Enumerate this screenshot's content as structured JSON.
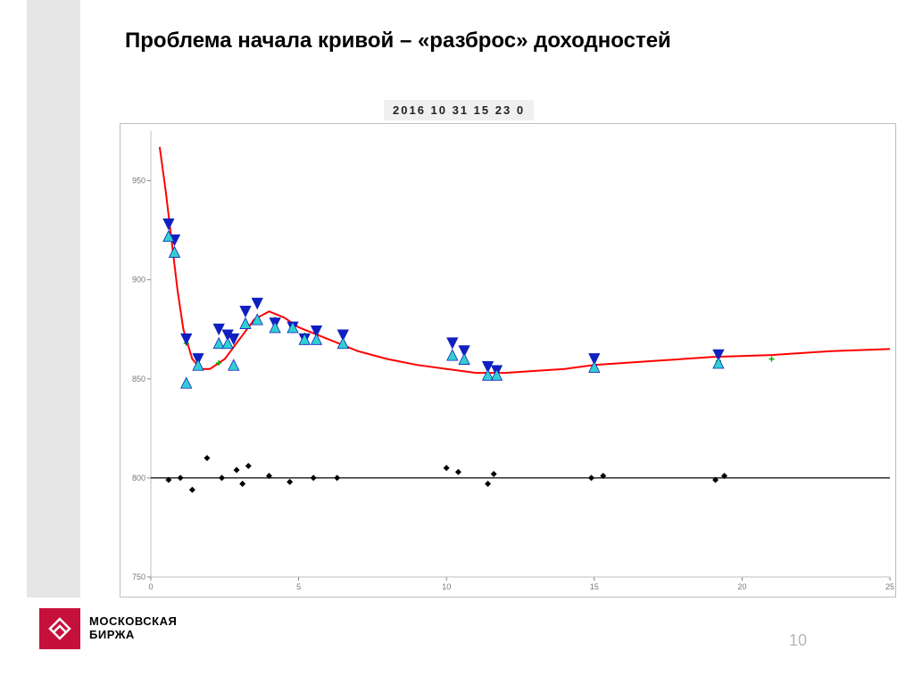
{
  "title": "Проблема начала кривой – «разброс» доходностей",
  "timestamp_label": "2016   10   31   15   23   0",
  "logo": {
    "line1": "МОСКОВСКАЯ",
    "line2": "БИРЖА"
  },
  "page_number": "10",
  "chart": {
    "type": "line+scatter",
    "background_color": "#ffffff",
    "plot_border_color": "#bfbfbf",
    "gridline_color": "#808080",
    "axis_tick_color": "#808080",
    "axis_label_fontsize": 9,
    "axis_label_color": "#777777",
    "xlim": [
      0,
      25
    ],
    "ylim": [
      750,
      975
    ],
    "yticks": [
      750,
      800,
      850,
      900,
      950
    ],
    "xticks": [
      0,
      5,
      10,
      15,
      20,
      25
    ],
    "red_curve": {
      "color": "#ff0000",
      "width": 2,
      "points": [
        [
          0.3,
          967
        ],
        [
          0.5,
          945
        ],
        [
          0.7,
          920
        ],
        [
          0.9,
          895
        ],
        [
          1.1,
          875
        ],
        [
          1.4,
          860
        ],
        [
          1.7,
          855
        ],
        [
          2.0,
          855
        ],
        [
          2.5,
          860
        ],
        [
          3.0,
          870
        ],
        [
          3.5,
          880
        ],
        [
          4.0,
          884
        ],
        [
          4.5,
          881
        ],
        [
          5.0,
          876
        ],
        [
          5.5,
          873
        ],
        [
          6.0,
          870
        ],
        [
          7.0,
          864
        ],
        [
          8.0,
          860
        ],
        [
          9.0,
          857
        ],
        [
          10.0,
          855
        ],
        [
          11.0,
          853
        ],
        [
          12.0,
          853
        ],
        [
          13.0,
          854
        ],
        [
          14.0,
          855
        ],
        [
          15.0,
          857
        ],
        [
          17.0,
          859
        ],
        [
          19.0,
          861
        ],
        [
          21.0,
          862
        ],
        [
          23.0,
          864
        ],
        [
          25.0,
          865
        ]
      ]
    },
    "flat_line": {
      "color": "#000000",
      "width": 1.2,
      "y": 800,
      "x0": 0,
      "x1": 25
    },
    "triangles_down": {
      "color": "#1020c0",
      "fill": "#1020c0",
      "size": 6,
      "points": [
        [
          0.6,
          928
        ],
        [
          0.8,
          920
        ],
        [
          1.2,
          870
        ],
        [
          1.6,
          860
        ],
        [
          2.3,
          875
        ],
        [
          2.6,
          872
        ],
        [
          2.8,
          870
        ],
        [
          3.2,
          884
        ],
        [
          3.6,
          888
        ],
        [
          4.2,
          878
        ],
        [
          4.8,
          876
        ],
        [
          5.2,
          870
        ],
        [
          5.6,
          874
        ],
        [
          6.5,
          872
        ],
        [
          10.2,
          868
        ],
        [
          10.6,
          864
        ],
        [
          11.4,
          856
        ],
        [
          11.7,
          854
        ],
        [
          15.0,
          860
        ],
        [
          19.2,
          862
        ]
      ]
    },
    "triangles_up": {
      "color": "#1020c0",
      "fill": "#30d0d0",
      "size": 6,
      "points": [
        [
          0.6,
          922
        ],
        [
          0.8,
          914
        ],
        [
          1.2,
          848
        ],
        [
          1.6,
          857
        ],
        [
          2.3,
          868
        ],
        [
          2.6,
          868
        ],
        [
          2.8,
          857
        ],
        [
          3.2,
          878
        ],
        [
          3.6,
          880
        ],
        [
          4.2,
          876
        ],
        [
          4.8,
          876
        ],
        [
          5.2,
          870
        ],
        [
          5.6,
          870
        ],
        [
          6.5,
          868
        ],
        [
          10.2,
          862
        ],
        [
          10.6,
          860
        ],
        [
          11.4,
          852
        ],
        [
          11.7,
          852
        ],
        [
          15.0,
          856
        ],
        [
          19.2,
          858
        ]
      ]
    },
    "green_crosses": {
      "color": "#00b000",
      "size": 3,
      "points": [
        [
          1.2,
          868
        ],
        [
          2.3,
          858
        ],
        [
          4.2,
          880
        ],
        [
          5.2,
          872
        ],
        [
          10.2,
          862
        ],
        [
          11.4,
          852
        ],
        [
          15.0,
          856
        ],
        [
          19.2,
          859
        ],
        [
          21.0,
          860
        ]
      ]
    },
    "black_diamonds": {
      "color": "#000000",
      "size": 3.5,
      "points": [
        [
          0.6,
          799
        ],
        [
          1.0,
          800
        ],
        [
          1.4,
          794
        ],
        [
          1.9,
          810
        ],
        [
          2.4,
          800
        ],
        [
          2.9,
          804
        ],
        [
          3.1,
          797
        ],
        [
          3.3,
          806
        ],
        [
          4.0,
          801
        ],
        [
          4.7,
          798
        ],
        [
          5.5,
          800
        ],
        [
          6.3,
          800
        ],
        [
          10.0,
          805
        ],
        [
          10.4,
          803
        ],
        [
          11.4,
          797
        ],
        [
          11.6,
          802
        ],
        [
          14.9,
          800
        ],
        [
          15.3,
          801
        ],
        [
          19.1,
          799
        ],
        [
          19.4,
          801
        ]
      ]
    }
  }
}
